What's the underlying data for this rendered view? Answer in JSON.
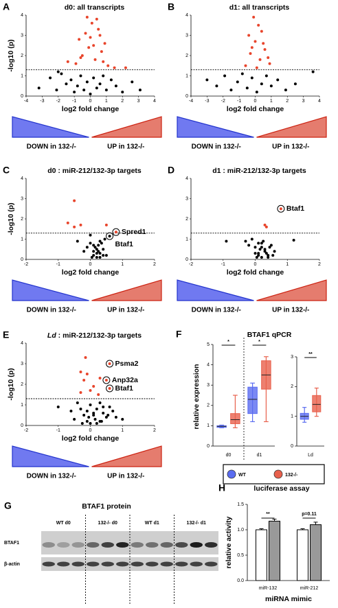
{
  "chart_data": [
    {
      "type": "scatter",
      "panel_label": "A",
      "title": "d0: all transcripts",
      "xlabel": "log2 fold change",
      "ylabel": "-log10 (p)",
      "xlim": [
        -4,
        4
      ],
      "ylim": [
        0,
        4
      ],
      "xticks": [
        -4,
        -3,
        -2,
        -1,
        0,
        1,
        2,
        3,
        4
      ],
      "yticks": [
        0,
        1,
        2,
        3,
        4
      ],
      "threshold": 1.3,
      "color": "#000000",
      "sig_color": "#e8452c",
      "down_label": "DOWN in 132-/-",
      "up_label": "UP in 132-/-",
      "x": [
        -3.2,
        -2.5,
        -2.1,
        -1.8,
        -1.5,
        -1.2,
        -1.0,
        -0.8,
        -0.6,
        -0.4,
        -0.2,
        0,
        0.2,
        0.4,
        0.6,
        0.8,
        1.0,
        1.3,
        1.6,
        2.0,
        2.6,
        3.1,
        -0.9,
        -0.5,
        -0.1,
        0.3,
        0.7,
        1.1,
        -0.7,
        -0.3,
        0.1,
        0.5,
        0.9,
        -0.6,
        0.0,
        0.4,
        0.8,
        -0.2,
        0.2,
        0.6,
        1.5,
        -1.4,
        2.2,
        -2.0
      ],
      "y": [
        0.4,
        0.9,
        0.3,
        1.1,
        0.6,
        0.8,
        0.2,
        0.5,
        1.0,
        0.3,
        0.7,
        0.1,
        0.9,
        0.4,
        0.6,
        1.0,
        0.3,
        0.8,
        0.5,
        0.2,
        0.7,
        0.3,
        1.6,
        2.0,
        2.4,
        1.8,
        2.2,
        1.5,
        2.8,
        3.1,
        3.6,
        3.3,
        2.6,
        1.9,
        2.9,
        3.8,
        1.7,
        3.9,
        2.5,
        3.0,
        1.4,
        1.7,
        1.4,
        1.2
      ]
    },
    {
      "type": "scatter",
      "panel_label": "B",
      "title": "d1: all transcripts",
      "xlabel": "log2 fold change",
      "xlim": [
        -4,
        4
      ],
      "ylim": [
        0,
        4
      ],
      "xticks": [
        -4,
        -3,
        -2,
        -1,
        0,
        1,
        2,
        3,
        4
      ],
      "yticks": [
        0,
        1,
        2,
        3,
        4
      ],
      "threshold": 1.3,
      "color": "#000000",
      "sig_color": "#e8452c",
      "down_label": "DOWN in 132-/-",
      "up_label": "UP in 132-/-",
      "x": [
        -3.0,
        -2.4,
        -1.9,
        -1.5,
        -1.1,
        -0.8,
        -0.5,
        -0.2,
        0.1,
        0.4,
        0.7,
        1.0,
        1.4,
        1.9,
        2.5,
        3.6,
        -0.6,
        -0.3,
        0.0,
        0.3,
        0.6,
        0.9,
        -0.4,
        0.2,
        0.5,
        -0.1,
        0.4,
        0.8,
        -0.2,
        0.1
      ],
      "y": [
        0.8,
        0.5,
        1.0,
        0.3,
        0.7,
        1.1,
        0.4,
        0.9,
        0.2,
        0.6,
        1.0,
        0.5,
        0.8,
        0.3,
        0.6,
        1.2,
        1.5,
        2.1,
        2.7,
        1.8,
        2.3,
        1.6,
        3.0,
        3.5,
        2.6,
        3.9,
        3.2,
        1.9,
        2.4,
        1.4
      ]
    },
    {
      "type": "scatter",
      "panel_label": "C",
      "title": "d0 : miR-212/132-3p targets",
      "xlabel": "log2 fold change",
      "ylabel": "-log10 (p)",
      "xlim": [
        -2,
        2
      ],
      "ylim": [
        0,
        4
      ],
      "xticks": [
        -2,
        -1,
        0,
        1,
        2
      ],
      "yticks": [
        0,
        1,
        2,
        3,
        4
      ],
      "threshold": 1.3,
      "color": "#000000",
      "sig_color": "#e8452c",
      "down_label": "DOWN in 132-/-",
      "up_label": "UP in 132-/-",
      "x": [
        -0.7,
        -0.5,
        -0.3,
        0.5,
        0.8,
        -0.5,
        0.6,
        -0.4,
        -0.2,
        0.0,
        0.1,
        0.2,
        0.3,
        0.4,
        0.5,
        0.05,
        0.15,
        0.25,
        0.35,
        0.45,
        0.1,
        0.2,
        0.3,
        -0.1,
        0.0,
        0.2,
        0.4,
        0.3,
        0.1,
        0.25
      ],
      "y": [
        1.8,
        1.6,
        1.7,
        1.7,
        1.35,
        2.9,
        1.15,
        0.9,
        0.4,
        1.2,
        0.7,
        0.3,
        0.9,
        0.5,
        0.2,
        0.1,
        0.6,
        0.4,
        0.8,
        1.0,
        0.2,
        0.1,
        0.3,
        0.6,
        0.8,
        0.5,
        0.2,
        0.1,
        0.4,
        0.7
      ],
      "annotations": [
        {
          "text": "Spred1",
          "x": 0.8,
          "y": 1.35
        },
        {
          "text": "Btaf1",
          "x": 0.6,
          "y": 1.15
        }
      ]
    },
    {
      "type": "scatter",
      "panel_label": "D",
      "title": "d1 : miR-212/132-3p targets",
      "xlabel": "log2 fold change",
      "xlim": [
        -2,
        2
      ],
      "ylim": [
        0,
        4
      ],
      "xticks": [
        -2,
        -1,
        0,
        1,
        2
      ],
      "yticks": [
        0,
        1,
        2,
        3,
        4
      ],
      "threshold": 1.3,
      "color": "#000000",
      "sig_color": "#e8452c",
      "down_label": "DOWN in 132-/-",
      "up_label": "UP in 132-/-",
      "x": [
        0.8,
        0.3,
        0.35,
        -0.9,
        1.2,
        -0.3,
        -0.1,
        0.0,
        0.1,
        0.2,
        0.3,
        0.4,
        0.5,
        0.6,
        0.05,
        0.15,
        0.25,
        0.35,
        0.45,
        0.1,
        0.2,
        0.3,
        0.0,
        0.2,
        0.4,
        -0.2,
        0.55,
        0.1
      ],
      "y": [
        2.5,
        1.7,
        1.6,
        0.9,
        0.95,
        0.9,
        1.0,
        0.6,
        0.3,
        0.8,
        0.5,
        0.2,
        0.7,
        0.4,
        0.1,
        0.5,
        0.9,
        0.3,
        0.6,
        0.2,
        0.1,
        0.4,
        0.3,
        0.6,
        0.1,
        0.7,
        0.2,
        0.8
      ],
      "annotations": [
        {
          "text": "Btaf1",
          "x": 0.8,
          "y": 2.5
        }
      ]
    },
    {
      "type": "scatter",
      "panel_label": "E",
      "title_italic": "Ld",
      "title": " : miR-212/132-3p targets",
      "xlabel": "log2 fold change",
      "ylabel": "-log10 (p)",
      "xlim": [
        -2,
        2
      ],
      "ylim": [
        0,
        4
      ],
      "xticks": [
        -2,
        -1,
        0,
        1,
        2
      ],
      "yticks": [
        0,
        1,
        2,
        3,
        4
      ],
      "threshold": 1.3,
      "color": "#000000",
      "sig_color": "#e8452c",
      "down_label": "DOWN in 132-/-",
      "up_label": "UP in 132-/-",
      "x": [
        0.6,
        0.5,
        0.6,
        -0.3,
        -0.1,
        -0.2,
        -0.3,
        0.0,
        0.1,
        0.3,
        -0.15,
        0.25,
        -1.0,
        -0.6,
        -0.4,
        -0.2,
        0.0,
        0.2,
        0.4,
        0.6,
        0.8,
        1.0,
        -0.5,
        -0.3,
        -0.1,
        0.1,
        0.3,
        0.5,
        0.7,
        -0.25,
        -0.05,
        0.15,
        0.35,
        0.55,
        0.0,
        0.2,
        -0.1,
        0.4,
        0.1,
        0.3
      ],
      "y": [
        3.0,
        2.2,
        1.8,
        2.6,
        2.5,
        2.2,
        1.6,
        1.7,
        1.9,
        2.3,
        3.3,
        1.5,
        0.9,
        0.7,
        1.1,
        0.5,
        1.0,
        0.8,
        0.6,
        0.9,
        0.4,
        0.3,
        0.3,
        0.8,
        0.2,
        0.6,
        1.1,
        0.4,
        0.7,
        0.1,
        0.4,
        0.3,
        0.2,
        0.5,
        0.1,
        0.1,
        0.7,
        0.9,
        0.5,
        0.2
      ],
      "annotations": [
        {
          "text": "Psma2",
          "x": 0.6,
          "y": 3.0
        },
        {
          "text": "Anp32a",
          "x": 0.5,
          "y": 2.2
        },
        {
          "text": "Btaf1",
          "x": 0.6,
          "y": 1.8
        }
      ]
    },
    {
      "type": "box",
      "panel_label": "F",
      "title": "BTAF1 qPCR",
      "ylabel": "relative expression",
      "series": [
        {
          "name": "WT",
          "color": "#5a6cf0"
        },
        {
          "name": "132-/-",
          "color": "#e8604c"
        }
      ],
      "panels": [
        {
          "categories": [
            "d0",
            "d1"
          ],
          "ylim": [
            0,
            5
          ],
          "yticks": [
            0,
            1,
            2,
            3,
            4,
            5
          ],
          "significance": [
            "*",
            "*"
          ],
          "values": [
            [
              [
                0.9,
                0.92,
                0.97,
                1.0,
                1.03
              ],
              [
                1.2,
                1.6,
                2.3,
                2.9,
                3.1
              ]
            ],
            [
              [
                0.9,
                1.1,
                1.3,
                1.6,
                2.5
              ],
              [
                1.2,
                2.8,
                3.5,
                4.2,
                4.4
              ]
            ]
          ]
        },
        {
          "categories": [
            "Ld"
          ],
          "ylim": [
            0,
            3
          ],
          "yticks": [
            0,
            1,
            2,
            3
          ],
          "significance": [
            "**"
          ],
          "values": [
            [
              [
                0.8,
                0.9,
                1.0,
                1.1,
                1.3
              ]
            ],
            [
              [
                1.0,
                1.15,
                1.4,
                1.7,
                1.95
              ]
            ]
          ]
        }
      ]
    },
    {
      "type": "blot",
      "panel_label": "G",
      "title": "BTAF1 protein",
      "lanes": [
        "WT d0",
        "132-/- d0",
        "WT d1",
        "132-/- d1"
      ],
      "rows": [
        "BTAF1",
        "β-actin"
      ]
    },
    {
      "type": "bar",
      "panel_label": "H",
      "title": "luciferase assay",
      "ylabel": "relative activity",
      "xlabel": "miRNA mimic",
      "categories": [
        "miR-132",
        "miR-212"
      ],
      "ylim": [
        0,
        1.5
      ],
      "yticks": [
        {
          "value": 0,
          "label": "0.0"
        },
        {
          "value": 0.5,
          "label": "0.5"
        },
        {
          "value": 1,
          "label": "1.0"
        },
        {
          "value": 1.5,
          "label": "1.5"
        }
      ],
      "series": [
        {
          "color": "#ffffff",
          "values": [
            1.0,
            1.0
          ],
          "errors": [
            0.02,
            0.02
          ]
        },
        {
          "color": "#999999",
          "values": [
            1.17,
            1.1
          ],
          "errors": [
            0.04,
            0.05
          ]
        }
      ],
      "annotations": [
        "**",
        "p=0.11"
      ]
    }
  ]
}
